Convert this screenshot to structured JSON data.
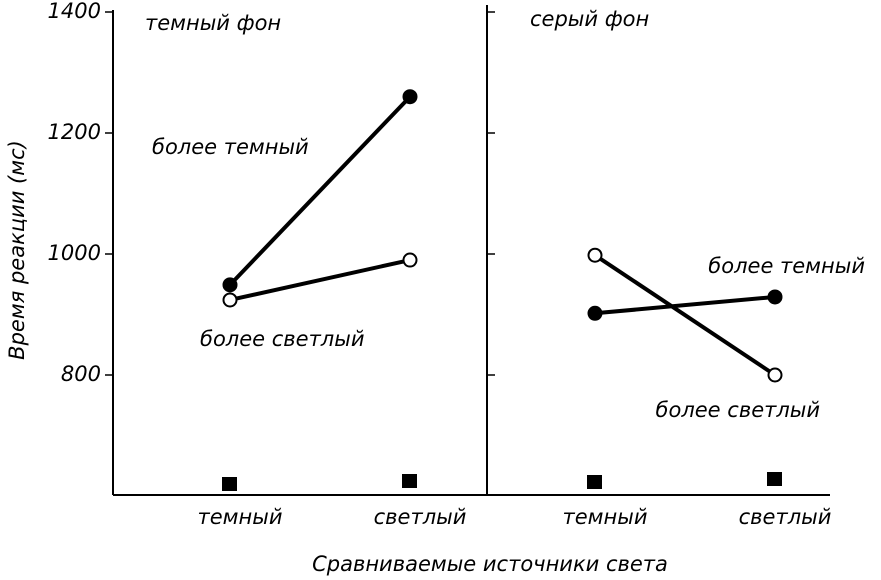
{
  "chart_data": [
    {
      "type": "line",
      "title": "темный фон",
      "ylabel": "Время реакции (мс)",
      "xlabel": "Сравниваемые источники света",
      "categories": [
        "темный",
        "светлый"
      ],
      "series": [
        {
          "name": "более темный",
          "color": "#000000",
          "marker": "filled",
          "values": [
            949,
            1260
          ]
        },
        {
          "name": "более светлый",
          "color": "#000000",
          "marker": "open",
          "values": [
            924,
            990
          ]
        }
      ],
      "ylim": [
        600,
        1400
      ],
      "yticks": [
        800,
        1000,
        1200,
        1400
      ]
    },
    {
      "type": "line",
      "title": "серый фон",
      "categories": [
        "темный",
        "светлый"
      ],
      "series": [
        {
          "name": "более темный",
          "color": "#000000",
          "marker": "filled",
          "values": [
            902,
            929
          ]
        },
        {
          "name": "более светлый",
          "color": "#000000",
          "marker": "open",
          "values": [
            998,
            800
          ]
        }
      ],
      "ylim": [
        600,
        1400
      ]
    }
  ]
}
